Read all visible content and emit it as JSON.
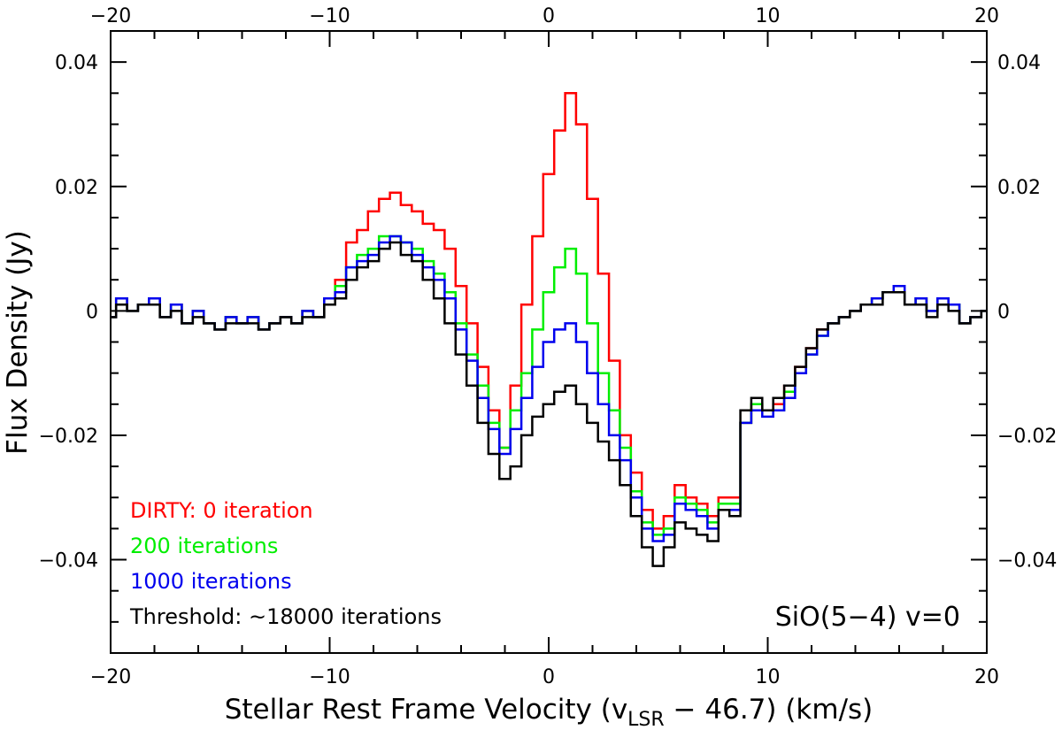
{
  "chart_data": {
    "type": "line",
    "step": true,
    "title": "",
    "xlabel": "Stellar Rest Frame Velocity (v",
    "xlabel_sub": "LSR",
    "xlabel_tail": " − 46.7) (km/s)",
    "ylabel": "Flux Density (Jy)",
    "xlim": [
      -20,
      20
    ],
    "ylim": [
      -0.055,
      0.045
    ],
    "x_ticks": [
      -20,
      -10,
      0,
      10,
      20
    ],
    "x_tick_labels": [
      "−20",
      "−10",
      "0",
      "10",
      "20"
    ],
    "y_ticks": [
      -0.04,
      -0.02,
      0,
      0.02,
      0.04
    ],
    "y_tick_labels": [
      "−0.04",
      "−0.02",
      "0",
      "0.02",
      "0.04"
    ],
    "annotation": "SiO(5−4) v=0",
    "legend_position": "bottom-left",
    "x": [
      -20.0,
      -19.5,
      -19.0,
      -18.5,
      -18.0,
      -17.5,
      -17.0,
      -16.5,
      -16.0,
      -15.5,
      -15.0,
      -14.5,
      -14.0,
      -13.5,
      -13.0,
      -12.5,
      -12.0,
      -11.5,
      -11.0,
      -10.5,
      -10.0,
      -9.5,
      -9.0,
      -8.5,
      -8.0,
      -7.5,
      -7.0,
      -6.5,
      -6.0,
      -5.5,
      -5.0,
      -4.5,
      -4.0,
      -3.5,
      -3.0,
      -2.5,
      -2.0,
      -1.5,
      -1.0,
      -0.5,
      0.0,
      0.5,
      1.0,
      1.5,
      2.0,
      2.5,
      3.0,
      3.5,
      4.0,
      4.5,
      5.0,
      5.5,
      6.0,
      6.5,
      7.0,
      7.5,
      8.0,
      8.5,
      9.0,
      9.5,
      10.0,
      10.5,
      11.0,
      11.5,
      12.0,
      12.5,
      13.0,
      13.5,
      14.0,
      14.5,
      15.0,
      15.5,
      16.0,
      16.5,
      17.0,
      17.5,
      18.0,
      18.5,
      19.0,
      19.5,
      20.0
    ],
    "series": [
      {
        "name": "DIRTY: 0 iteration",
        "color": "#ff0000",
        "values": [
          -0.001,
          0.002,
          0.0,
          0.001,
          0.002,
          -0.001,
          0.001,
          -0.002,
          0.0,
          -0.002,
          -0.003,
          -0.001,
          -0.002,
          -0.001,
          -0.003,
          -0.002,
          -0.001,
          -0.002,
          0.0,
          -0.001,
          0.002,
          0.005,
          0.011,
          0.013,
          0.016,
          0.018,
          0.019,
          0.017,
          0.016,
          0.014,
          0.013,
          0.01,
          0.004,
          -0.002,
          -0.009,
          -0.016,
          -0.022,
          -0.012,
          0.001,
          0.012,
          0.022,
          0.029,
          0.035,
          0.03,
          0.018,
          0.006,
          -0.008,
          -0.02,
          -0.026,
          -0.032,
          -0.035,
          -0.033,
          -0.028,
          -0.03,
          -0.031,
          -0.033,
          -0.03,
          -0.03,
          -0.018,
          -0.015,
          -0.016,
          -0.015,
          -0.012,
          -0.009,
          -0.006,
          -0.003,
          -0.002,
          -0.001,
          0.0,
          0.001,
          0.002,
          0.003,
          0.003,
          0.001,
          0.002,
          0.0,
          0.002,
          0.001,
          -0.002,
          -0.001,
          0.0
        ]
      },
      {
        "name": "200 iterations",
        "color": "#00ee00",
        "values": [
          -0.001,
          0.002,
          0.0,
          0.001,
          0.002,
          -0.001,
          0.001,
          -0.002,
          0.0,
          -0.002,
          -0.003,
          -0.001,
          -0.002,
          -0.001,
          -0.003,
          -0.002,
          -0.001,
          -0.002,
          0.0,
          -0.001,
          0.002,
          0.004,
          0.007,
          0.009,
          0.01,
          0.012,
          0.012,
          0.011,
          0.01,
          0.008,
          0.006,
          0.003,
          -0.002,
          -0.007,
          -0.012,
          -0.018,
          -0.022,
          -0.016,
          -0.01,
          -0.003,
          0.003,
          0.007,
          0.01,
          0.006,
          -0.002,
          -0.01,
          -0.016,
          -0.022,
          -0.029,
          -0.034,
          -0.036,
          -0.035,
          -0.03,
          -0.031,
          -0.032,
          -0.034,
          -0.031,
          -0.031,
          -0.018,
          -0.015,
          -0.016,
          -0.016,
          -0.013,
          -0.01,
          -0.007,
          -0.004,
          -0.002,
          -0.001,
          0.0,
          0.001,
          0.002,
          0.003,
          0.003,
          0.001,
          0.002,
          0.0,
          0.002,
          0.001,
          -0.002,
          -0.001,
          0.0
        ]
      },
      {
        "name": "1000 iterations",
        "color": "#0000ee",
        "values": [
          -0.001,
          0.002,
          0.0,
          0.001,
          0.002,
          -0.001,
          0.001,
          -0.002,
          0.0,
          -0.002,
          -0.003,
          -0.001,
          -0.002,
          -0.001,
          -0.003,
          -0.002,
          -0.001,
          -0.002,
          0.0,
          -0.001,
          0.002,
          0.003,
          0.007,
          0.008,
          0.009,
          0.011,
          0.012,
          0.011,
          0.009,
          0.007,
          0.005,
          0.002,
          -0.003,
          -0.008,
          -0.014,
          -0.019,
          -0.023,
          -0.019,
          -0.014,
          -0.009,
          -0.005,
          -0.003,
          -0.002,
          -0.005,
          -0.01,
          -0.015,
          -0.02,
          -0.024,
          -0.03,
          -0.035,
          -0.037,
          -0.036,
          -0.031,
          -0.032,
          -0.033,
          -0.035,
          -0.032,
          -0.032,
          -0.018,
          -0.016,
          -0.017,
          -0.016,
          -0.014,
          -0.01,
          -0.007,
          -0.004,
          -0.002,
          -0.001,
          0.0,
          0.001,
          0.002,
          0.003,
          0.004,
          0.001,
          0.002,
          0.0,
          0.002,
          0.001,
          -0.002,
          -0.001,
          0.0
        ]
      },
      {
        "name": "Threshold: ~18000 iterations",
        "color": "#000000",
        "values": [
          -0.001,
          0.001,
          0.0,
          0.001,
          0.001,
          -0.001,
          0.0,
          -0.002,
          -0.001,
          -0.002,
          -0.003,
          -0.002,
          -0.002,
          -0.002,
          -0.003,
          -0.002,
          -0.001,
          -0.002,
          -0.001,
          -0.001,
          0.001,
          0.002,
          0.005,
          0.007,
          0.008,
          0.01,
          0.011,
          0.009,
          0.008,
          0.005,
          0.002,
          -0.002,
          -0.007,
          -0.012,
          -0.018,
          -0.023,
          -0.027,
          -0.025,
          -0.02,
          -0.017,
          -0.015,
          -0.013,
          -0.012,
          -0.015,
          -0.018,
          -0.021,
          -0.024,
          -0.028,
          -0.033,
          -0.038,
          -0.041,
          -0.038,
          -0.034,
          -0.035,
          -0.036,
          -0.037,
          -0.032,
          -0.033,
          -0.016,
          -0.014,
          -0.016,
          -0.014,
          -0.012,
          -0.009,
          -0.006,
          -0.003,
          -0.002,
          -0.001,
          0.0,
          0.001,
          0.001,
          0.003,
          0.003,
          0.001,
          0.001,
          -0.001,
          0.001,
          0.0,
          -0.002,
          -0.001,
          0.0
        ]
      }
    ]
  }
}
